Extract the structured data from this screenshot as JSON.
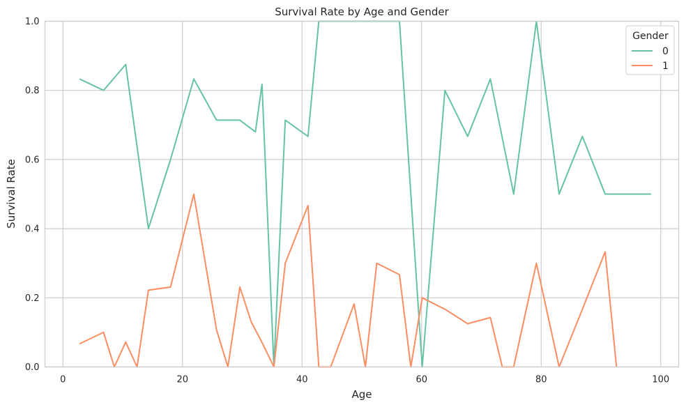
{
  "chart_data": {
    "type": "line",
    "title": "Survival Rate by Age and Gender",
    "xlabel": "Age",
    "ylabel": "Survival Rate",
    "xlim": [
      -3,
      103
    ],
    "ylim": [
      0,
      1
    ],
    "xticks": [
      "0",
      "20",
      "40",
      "60",
      "80",
      "100"
    ],
    "yticks": [
      "0.0",
      "0.2",
      "0.4",
      "0.6",
      "0.8",
      "1.0"
    ],
    "grid": true,
    "legend": {
      "title": "Gender",
      "placement": "top-right"
    },
    "series": [
      {
        "name": "0",
        "color": "#66c2a5",
        "points": [
          [
            2.8,
            0.833
          ],
          [
            6.8,
            0.8
          ],
          [
            10.5,
            0.875
          ],
          [
            14.3,
            0.4
          ],
          [
            18.0,
            0.6
          ],
          [
            21.9,
            0.833
          ],
          [
            25.7,
            0.714
          ],
          [
            29.6,
            0.714
          ],
          [
            32.2,
            0.68
          ],
          [
            33.3,
            0.818
          ],
          [
            35.3,
            0.0
          ],
          [
            37.2,
            0.714
          ],
          [
            41.0,
            0.667
          ],
          [
            42.8,
            1.0
          ],
          [
            44.8,
            1.0
          ],
          [
            48.7,
            1.0
          ],
          [
            52.5,
            1.0
          ],
          [
            56.3,
            1.0
          ],
          [
            60.1,
            0.0
          ],
          [
            63.9,
            0.8
          ],
          [
            67.7,
            0.667
          ],
          [
            71.5,
            0.833
          ],
          [
            75.4,
            0.5
          ],
          [
            79.2,
            1.0
          ],
          [
            83.0,
            0.5
          ],
          [
            86.9,
            0.667
          ],
          [
            90.7,
            0.5
          ],
          [
            94.6,
            0.5
          ],
          [
            98.4,
            0.5
          ]
        ]
      },
      {
        "name": "1",
        "color": "#fc8d62",
        "points": [
          [
            2.8,
            0.067
          ],
          [
            6.8,
            0.1
          ],
          [
            8.6,
            0.0
          ],
          [
            10.5,
            0.072
          ],
          [
            12.4,
            0.0
          ],
          [
            14.3,
            0.222
          ],
          [
            18.0,
            0.231
          ],
          [
            21.9,
            0.5
          ],
          [
            25.7,
            0.107
          ],
          [
            27.6,
            0.0
          ],
          [
            29.6,
            0.231
          ],
          [
            31.5,
            0.13
          ],
          [
            33.3,
            0.071
          ],
          [
            35.3,
            0.0
          ],
          [
            37.2,
            0.3
          ],
          [
            41.0,
            0.467
          ],
          [
            42.8,
            0.0
          ],
          [
            44.8,
            0.0
          ],
          [
            48.7,
            0.182
          ],
          [
            50.6,
            0.0
          ],
          [
            52.5,
            0.3
          ],
          [
            56.3,
            0.267
          ],
          [
            58.2,
            0.0
          ],
          [
            60.1,
            0.2
          ],
          [
            63.9,
            0.167
          ],
          [
            67.7,
            0.125
          ],
          [
            71.5,
            0.143
          ],
          [
            73.5,
            0.0
          ],
          [
            75.4,
            0.0
          ],
          [
            79.2,
            0.3
          ],
          [
            83.0,
            0.0
          ],
          [
            86.9,
            0.167
          ],
          [
            90.7,
            0.333
          ],
          [
            92.6,
            0.0
          ]
        ]
      }
    ]
  }
}
